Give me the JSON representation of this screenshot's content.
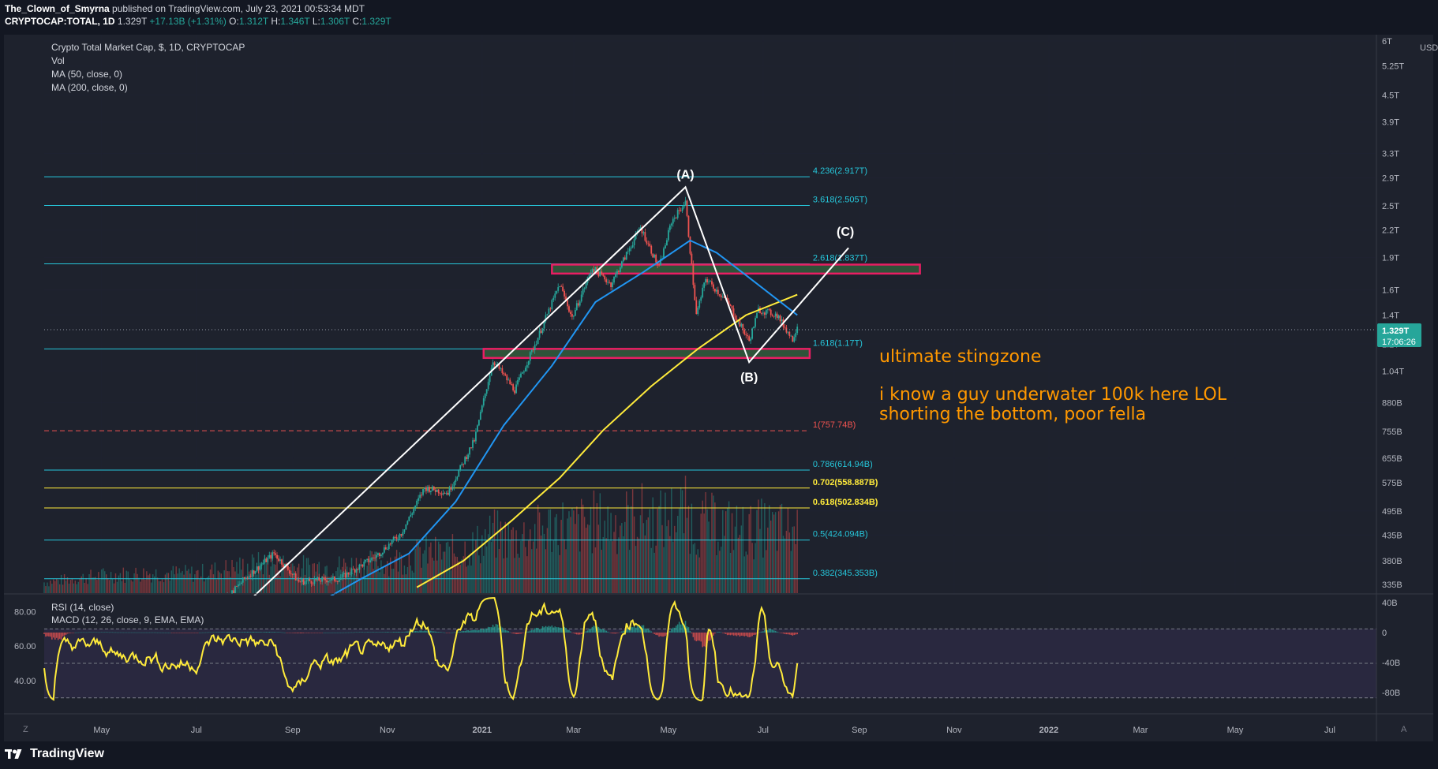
{
  "header": {
    "author": "The_Clown_of_Smyrna",
    "published": "published on TradingView.com, July 23, 2021 00:53:34 MDT",
    "symbol": "CRYPTOCAP:TOTAL, 1D",
    "last": "1.329T",
    "change": "+17.13B (+1.31%)",
    "o_label": "O:",
    "o": "1.312T",
    "h_label": "H:",
    "h": "1.346T",
    "l_label": "L:",
    "l": "1.306T",
    "c_label": "C:",
    "c": "1.329T"
  },
  "legend": {
    "title": "Crypto Total Market Cap, $, 1D, CRYPTOCAP",
    "vol": "Vol",
    "ma50": "MA (50, close, 0)",
    "ma200": "MA (200, close, 0)",
    "rsi": "RSI (14, close)",
    "macd": "MACD (12, 26, close, 9, EMA, EMA)"
  },
  "price_axis": {
    "currency": "USD",
    "ticks": [
      {
        "label": "6T",
        "value": 6000
      },
      {
        "label": "5.25T",
        "value": 5250
      },
      {
        "label": "4.5T",
        "value": 4500
      },
      {
        "label": "3.9T",
        "value": 3900
      },
      {
        "label": "3.3T",
        "value": 3300
      },
      {
        "label": "2.9T",
        "value": 2900
      },
      {
        "label": "2.5T",
        "value": 2500
      },
      {
        "label": "2.2T",
        "value": 2200
      },
      {
        "label": "1.9T",
        "value": 1900
      },
      {
        "label": "1.6T",
        "value": 1600
      },
      {
        "label": "1.4T",
        "value": 1400
      },
      {
        "label": "1.2T",
        "value": 1200
      },
      {
        "label": "1.04T",
        "value": 1040
      },
      {
        "label": "880B",
        "value": 880
      },
      {
        "label": "755B",
        "value": 755
      },
      {
        "label": "655B",
        "value": 655
      },
      {
        "label": "575B",
        "value": 575
      },
      {
        "label": "495B",
        "value": 495
      },
      {
        "label": "435B",
        "value": 435
      },
      {
        "label": "380B",
        "value": 380
      },
      {
        "label": "335B",
        "value": 335
      }
    ],
    "current_label": "1.329T",
    "current_value": 1329,
    "countdown": "17:06:26",
    "scale": "log"
  },
  "rsi_axis": {
    "ticks": [
      {
        "label": "80.00",
        "value": 80
      },
      {
        "label": "60.00",
        "value": 60
      },
      {
        "label": "40.00",
        "value": 40
      }
    ]
  },
  "macd_axis": {
    "ticks": [
      {
        "label": "40B",
        "value": 40
      },
      {
        "label": "0",
        "value": 0
      },
      {
        "label": "-40B",
        "value": -40
      },
      {
        "label": "-80B",
        "value": -80
      }
    ]
  },
  "time_axis": {
    "z": "Z",
    "a": "A",
    "labels": [
      {
        "label": "May",
        "date": "2020-05-01"
      },
      {
        "label": "Jul",
        "date": "2020-07-01"
      },
      {
        "label": "Sep",
        "date": "2020-09-01"
      },
      {
        "label": "Nov",
        "date": "2020-11-01"
      },
      {
        "label": "2021",
        "date": "2021-01-01"
      },
      {
        "label": "Mar",
        "date": "2021-03-01"
      },
      {
        "label": "May",
        "date": "2021-05-01"
      },
      {
        "label": "Jul",
        "date": "2021-07-01"
      },
      {
        "label": "Sep",
        "date": "2021-09-01"
      },
      {
        "label": "Nov",
        "date": "2021-11-01"
      },
      {
        "label": "2022",
        "date": "2022-01-01"
      },
      {
        "label": "Mar",
        "date": "2022-03-01"
      },
      {
        "label": "May",
        "date": "2022-05-01"
      },
      {
        "label": "Jul",
        "date": "2022-07-01"
      }
    ],
    "range": [
      "2020-03-25",
      "2022-07-31"
    ]
  },
  "fib_levels": [
    {
      "label": "4.236(2.917T)",
      "value": 2917,
      "color": "#26c6da"
    },
    {
      "label": "3.618(2.505T)",
      "value": 2505,
      "color": "#26c6da"
    },
    {
      "label": "2.618(1.837T)",
      "value": 1837,
      "color": "#26c6da"
    },
    {
      "label": "1.618(1.17T)",
      "value": 1170,
      "color": "#26c6da"
    },
    {
      "label": "1(757.74B)",
      "value": 757.74,
      "color": "#ef5350"
    },
    {
      "label": "0.786(614.94B)",
      "value": 614.94,
      "color": "#26c6da"
    },
    {
      "label": "0.702(558.887B)",
      "value": 558.887,
      "color": "#ffeb3b"
    },
    {
      "label": "0.618(502.834B)",
      "value": 502.834,
      "color": "#ffeb3b"
    },
    {
      "label": "0.5(424.094B)",
      "value": 424.094,
      "color": "#26c6da"
    },
    {
      "label": "0.382(345.353B)",
      "value": 345.353,
      "color": "#26c6da"
    }
  ],
  "zones": [
    {
      "from_date": "2021-02-15",
      "to_date": "2021-10-10",
      "low": 1745,
      "high": 1830
    },
    {
      "from_date": "2021-01-02",
      "to_date": "2021-07-31",
      "low": 1115,
      "high": 1170
    }
  ],
  "wave_labels": [
    {
      "label": "(A)",
      "date": "2021-05-12",
      "value": 2890
    },
    {
      "label": "(B)",
      "date": "2021-06-22",
      "value": 985
    },
    {
      "label": "(C)",
      "date": "2021-08-23",
      "value": 2130
    }
  ],
  "annotations": {
    "zone_note": "ultimate stingzone",
    "note_line1": "i know a guy underwater 100k here LOL",
    "note_line2": "shorting the bottom, poor fella"
  },
  "colors": {
    "background": "#131722",
    "grid": "#1f2230",
    "up": "#26a69a",
    "down": "#ef5350",
    "ma50": "#2196f3",
    "ma200": "#ffeb3b",
    "fib": "#26c6da",
    "zone": "#e91e63",
    "rsi": "#ffeb3b",
    "annotation": "#ff9800",
    "wave": "#ffffff"
  },
  "branding": {
    "logo_icon": "tradingview-logo-icon",
    "name": "TradingView"
  },
  "chart_data": {
    "type": "candlestick",
    "scale": "log",
    "ylim": [
      320,
      6200
    ],
    "xlim": [
      "2020-03-25",
      "2022-07-31"
    ],
    "close_series": [
      {
        "date": "2020-03-25",
        "value": 190
      },
      {
        "date": "2020-05-01",
        "value": 245
      },
      {
        "date": "2020-06-01",
        "value": 265
      },
      {
        "date": "2020-07-01",
        "value": 262
      },
      {
        "date": "2020-08-01",
        "value": 345
      },
      {
        "date": "2020-08-20",
        "value": 395
      },
      {
        "date": "2020-09-05",
        "value": 340
      },
      {
        "date": "2020-10-01",
        "value": 345
      },
      {
        "date": "2020-10-25",
        "value": 390
      },
      {
        "date": "2020-11-10",
        "value": 440
      },
      {
        "date": "2020-11-25",
        "value": 560
      },
      {
        "date": "2020-12-10",
        "value": 545
      },
      {
        "date": "2020-12-27",
        "value": 720
      },
      {
        "date": "2021-01-08",
        "value": 1100
      },
      {
        "date": "2021-01-22",
        "value": 940
      },
      {
        "date": "2021-02-05",
        "value": 1220
      },
      {
        "date": "2021-02-20",
        "value": 1650
      },
      {
        "date": "2021-02-28",
        "value": 1380
      },
      {
        "date": "2021-03-13",
        "value": 1800
      },
      {
        "date": "2021-03-25",
        "value": 1650
      },
      {
        "date": "2021-04-13",
        "value": 2230
      },
      {
        "date": "2021-04-25",
        "value": 1800
      },
      {
        "date": "2021-05-03",
        "value": 2300
      },
      {
        "date": "2021-05-12",
        "value": 2550
      },
      {
        "date": "2021-05-19",
        "value": 1400
      },
      {
        "date": "2021-05-25",
        "value": 1700
      },
      {
        "date": "2021-06-08",
        "value": 1500
      },
      {
        "date": "2021-06-22",
        "value": 1220
      },
      {
        "date": "2021-06-28",
        "value": 1440
      },
      {
        "date": "2021-07-10",
        "value": 1400
      },
      {
        "date": "2021-07-20",
        "value": 1230
      },
      {
        "date": "2021-07-23",
        "value": 1329
      }
    ],
    "ma50": [
      {
        "date": "2020-09-15",
        "value": 300
      },
      {
        "date": "2020-10-15",
        "value": 345
      },
      {
        "date": "2020-11-15",
        "value": 395
      },
      {
        "date": "2020-12-15",
        "value": 520
      },
      {
        "date": "2021-01-15",
        "value": 780
      },
      {
        "date": "2021-02-15",
        "value": 1070
      },
      {
        "date": "2021-03-15",
        "value": 1500
      },
      {
        "date": "2021-04-15",
        "value": 1760
      },
      {
        "date": "2021-05-15",
        "value": 2080
      },
      {
        "date": "2021-06-01",
        "value": 1950
      },
      {
        "date": "2021-06-20",
        "value": 1730
      },
      {
        "date": "2021-07-23",
        "value": 1400
      }
    ],
    "ma200": [
      {
        "date": "2020-11-20",
        "value": 330
      },
      {
        "date": "2020-12-20",
        "value": 380
      },
      {
        "date": "2021-01-20",
        "value": 470
      },
      {
        "date": "2021-02-20",
        "value": 590
      },
      {
        "date": "2021-03-20",
        "value": 760
      },
      {
        "date": "2021-04-20",
        "value": 960
      },
      {
        "date": "2021-05-20",
        "value": 1170
      },
      {
        "date": "2021-06-20",
        "value": 1400
      },
      {
        "date": "2021-07-23",
        "value": 1560
      }
    ],
    "wave_path": [
      {
        "date": "2020-08-03",
        "value": 305
      },
      {
        "date": "2021-05-12",
        "value": 2760
      },
      {
        "date": "2021-06-22",
        "value": 1090
      },
      {
        "date": "2021-08-25",
        "value": 2000
      }
    ],
    "rsi": {
      "ylim": [
        23,
        88
      ],
      "last": 56,
      "levels": [
        70,
        50,
        30
      ]
    },
    "macd": {
      "last": 5
    }
  }
}
